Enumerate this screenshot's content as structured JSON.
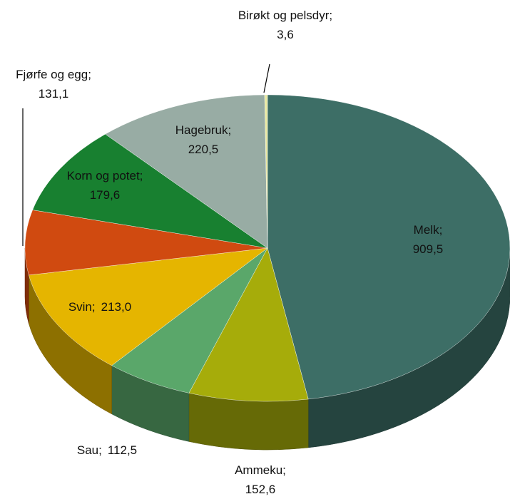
{
  "chart_data": {
    "type": "pie",
    "categories": [
      "Melk",
      "Ammeku",
      "Sau",
      "Svin",
      "Fjørfe og egg",
      "Korn og potet",
      "Hagebruk",
      "Birøkt og pelsdyr"
    ],
    "values": [
      909.5,
      152.6,
      112.5,
      213.0,
      131.1,
      179.6,
      220.5,
      3.6
    ],
    "value_labels": [
      "909,5",
      "152,6",
      "112,5",
      "213,0",
      "131,1",
      "179,6",
      "220,5",
      "3,6"
    ],
    "label_separator": ";",
    "colors": [
      "#3d6e66",
      "#a6ac0a",
      "#5aa76a",
      "#e5b500",
      "#d04a10",
      "#188030",
      "#98aca4",
      "#e8e8a0"
    ]
  }
}
